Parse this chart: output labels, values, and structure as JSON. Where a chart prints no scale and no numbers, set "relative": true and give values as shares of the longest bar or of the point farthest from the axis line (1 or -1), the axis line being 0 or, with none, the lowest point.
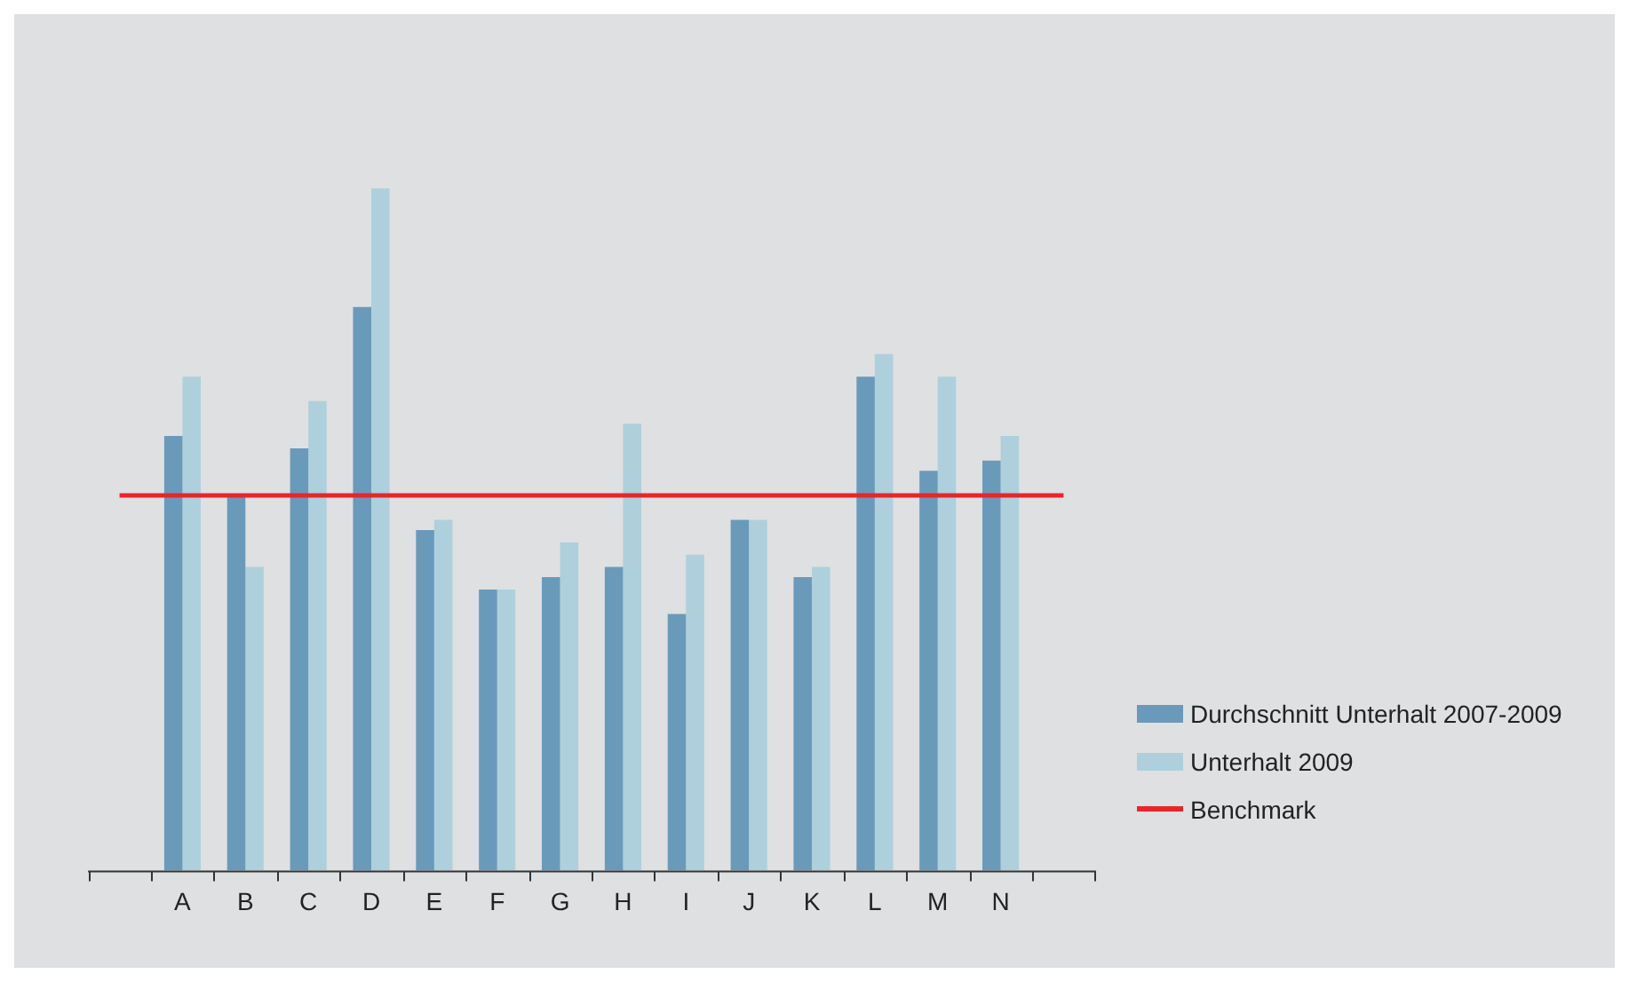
{
  "chart_data": {
    "type": "bar",
    "relative": true,
    "legend": "right",
    "grid": false,
    "categories": [
      "A",
      "B",
      "C",
      "D",
      "E",
      "F",
      "G",
      "H",
      "I",
      "J",
      "K",
      "L",
      "M",
      "N"
    ],
    "series": [
      {
        "name": "Durchschnitt Unterhalt 2007-2009",
        "color": "#6a9aba",
        "values": [
          0.637,
          0.55,
          0.619,
          0.826,
          0.499,
          0.412,
          0.43,
          0.445,
          0.376,
          0.514,
          0.43,
          0.724,
          0.586,
          0.601
        ]
      },
      {
        "name": "Unterhalt 2009",
        "color": "#add0dc",
        "values": [
          0.724,
          0.445,
          0.688,
          1,
          0.514,
          0.412,
          0.481,
          0.655,
          0.463,
          0.514,
          0.445,
          0.757,
          0.724,
          0.637
        ]
      }
    ],
    "ref_lines": [
      {
        "axis": "y",
        "value": 0.55,
        "label": "Benchmark",
        "color": "#e8262a"
      }
    ]
  }
}
